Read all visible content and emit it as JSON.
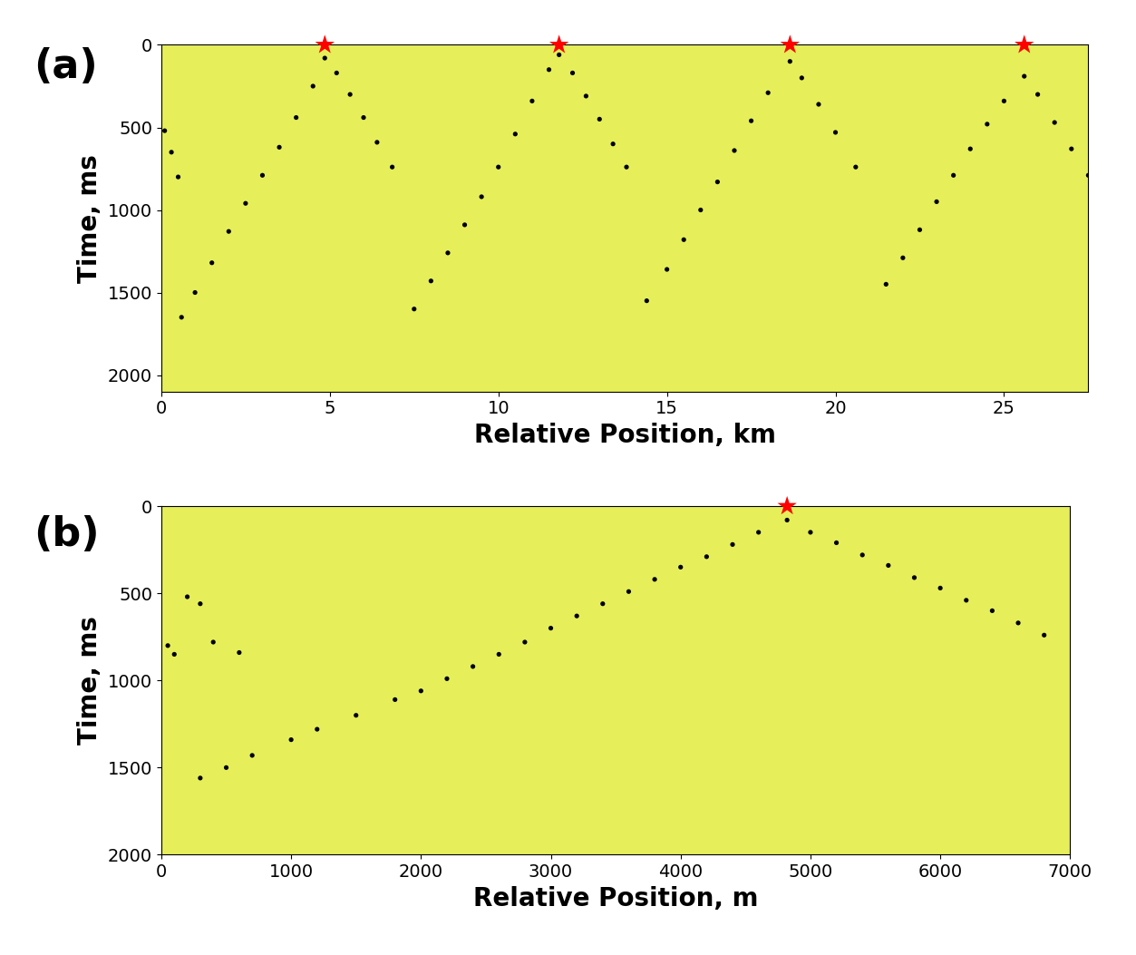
{
  "chart_data": [
    {
      "type": "scatter",
      "title": "(a)",
      "x_label": "Relative Position, km",
      "y_label": "Time, ms",
      "xlim": [
        0,
        27.5
      ],
      "ylim": [
        2100,
        0
      ],
      "xticks": [
        0,
        5,
        10,
        15,
        20,
        25
      ],
      "yticks": [
        0,
        500,
        1000,
        1500,
        2000
      ],
      "series": [
        {
          "type": "scatter",
          "color": "#000000",
          "marker": "o",
          "x": [
            0.1,
            0.3,
            0.5,
            0.6,
            1.0,
            1.5,
            2.0,
            2.5,
            3.0,
            3.5,
            4.0,
            4.5,
            4.85,
            5.2,
            5.6,
            6.0,
            6.4,
            6.85,
            7.5,
            8.0,
            8.5,
            9.0,
            9.5,
            10.0,
            10.5,
            11.0,
            11.5,
            11.8,
            12.2,
            12.6,
            13.0,
            13.4,
            13.8,
            14.4,
            15.0,
            15.5,
            16.0,
            16.5,
            17.0,
            17.5,
            18.0,
            18.65,
            19.0,
            19.5,
            20.0,
            20.6,
            21.5,
            22.0,
            22.5,
            23.0,
            23.5,
            24.0,
            24.5,
            25.0,
            25.6,
            26.0,
            26.5,
            27.0,
            27.5
          ],
          "values": [
            520,
            650,
            800,
            1650,
            1500,
            1320,
            1130,
            960,
            790,
            620,
            440,
            250,
            80,
            170,
            300,
            440,
            590,
            740,
            1600,
            1430,
            1260,
            1090,
            920,
            740,
            540,
            340,
            150,
            60,
            170,
            310,
            450,
            600,
            740,
            1550,
            1360,
            1180,
            1000,
            830,
            640,
            460,
            290,
            100,
            200,
            360,
            530,
            740,
            1450,
            1290,
            1120,
            950,
            790,
            630,
            480,
            340,
            190,
            300,
            470,
            630,
            790
          ]
        },
        {
          "type": "scatter",
          "color": "#ff0000",
          "marker": "*",
          "x": [
            4.85,
            11.8,
            18.65,
            25.6
          ],
          "values": [
            0,
            0,
            0,
            0
          ]
        }
      ]
    },
    {
      "type": "scatter",
      "title": "(b)",
      "x_label": "Relative Position, m",
      "y_label": "Time, ms",
      "xlim": [
        0,
        7000
      ],
      "ylim": [
        2000,
        0
      ],
      "xticks": [
        0,
        1000,
        2000,
        3000,
        4000,
        5000,
        6000,
        7000
      ],
      "yticks": [
        0,
        500,
        1000,
        1500,
        2000
      ],
      "series": [
        {
          "type": "scatter",
          "color": "#000000",
          "marker": "o",
          "x": [
            50,
            100,
            200,
            300,
            400,
            600,
            300,
            500,
            700,
            1000,
            1200,
            1500,
            1800,
            2000,
            2200,
            2400,
            2600,
            2800,
            3000,
            3200,
            3400,
            3600,
            3800,
            4000,
            4200,
            4400,
            4600,
            4820,
            5000,
            5200,
            5400,
            5600,
            5800,
            6000,
            6200,
            6400,
            6600,
            6800
          ],
          "values": [
            800,
            850,
            520,
            560,
            780,
            840,
            1560,
            1500,
            1430,
            1340,
            1280,
            1200,
            1110,
            1060,
            990,
            920,
            850,
            780,
            700,
            630,
            560,
            490,
            420,
            350,
            290,
            220,
            150,
            80,
            150,
            210,
            280,
            340,
            410,
            470,
            540,
            600,
            670,
            740
          ]
        },
        {
          "type": "scatter",
          "color": "#ff0000",
          "marker": "*",
          "x": [
            4820
          ],
          "values": [
            0
          ]
        }
      ]
    }
  ]
}
